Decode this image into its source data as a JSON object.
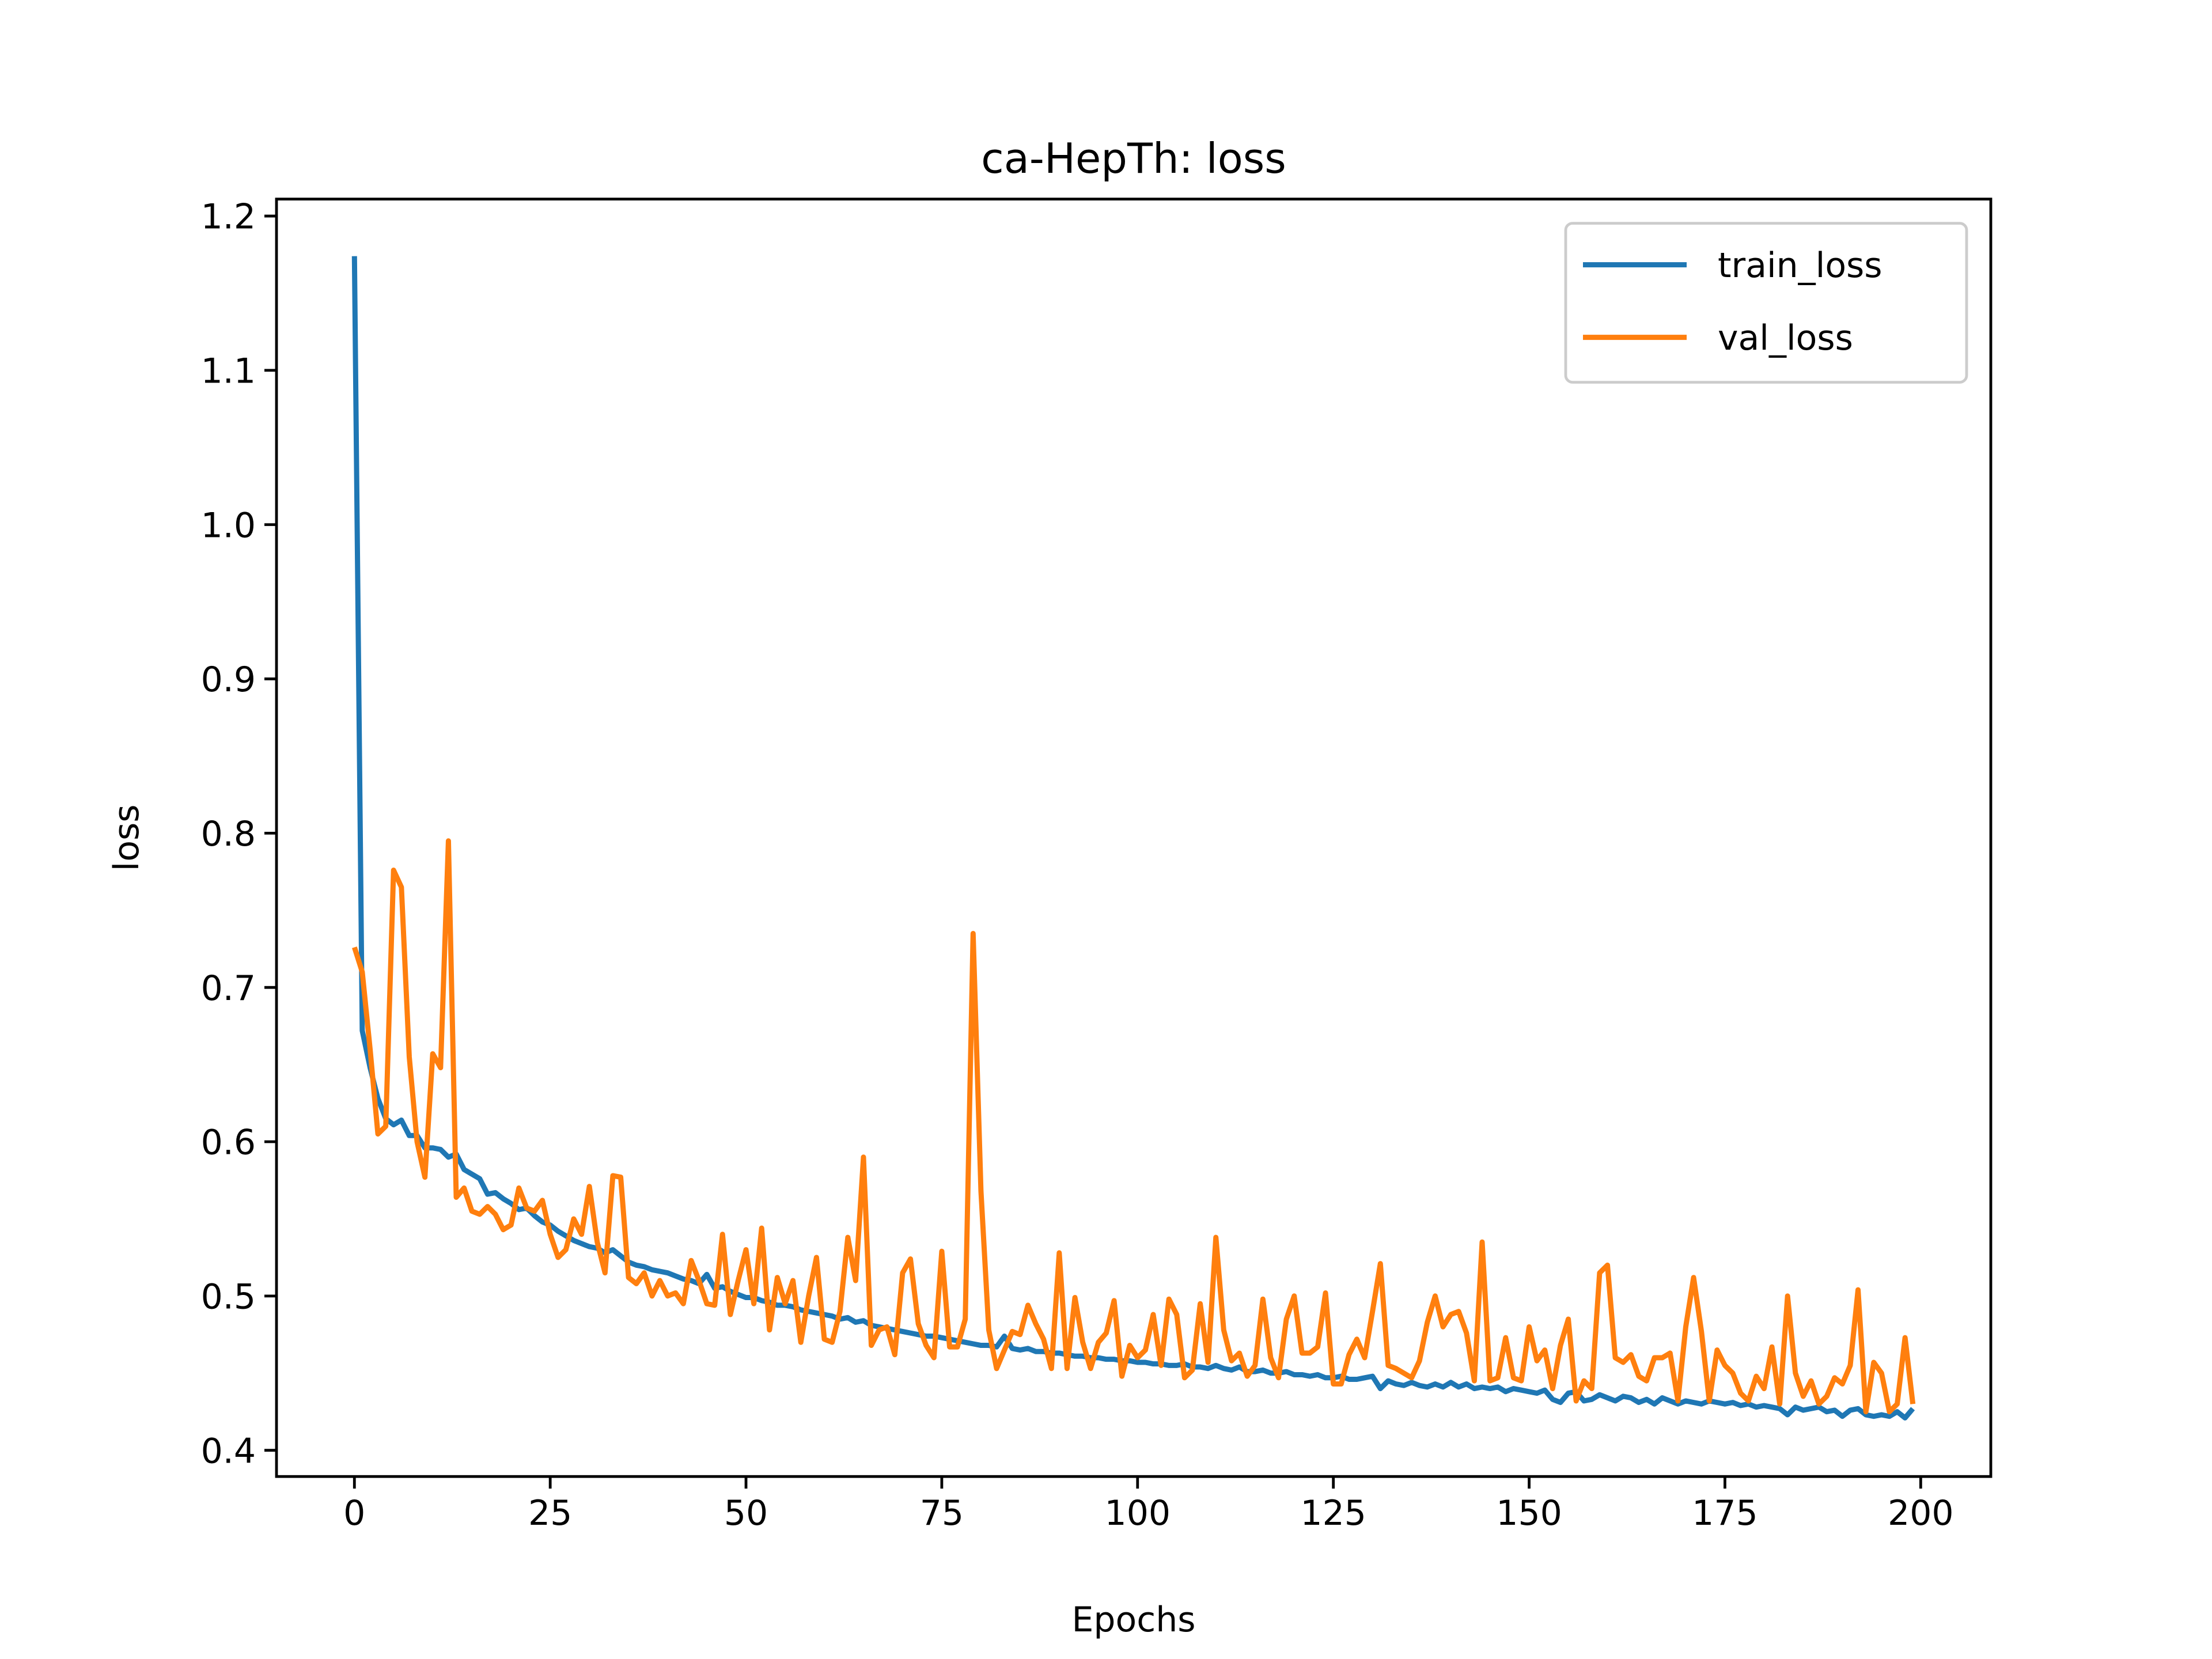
{
  "chart_data": {
    "type": "line",
    "title": "ca-HepTh: loss",
    "x_label": "Epochs",
    "y_label": "loss",
    "x": [
      0,
      1,
      2,
      3,
      4,
      5,
      6,
      7,
      8,
      9,
      10,
      11,
      12,
      13,
      14,
      15,
      16,
      17,
      18,
      19,
      20,
      21,
      22,
      23,
      24,
      25,
      26,
      27,
      28,
      29,
      30,
      31,
      32,
      33,
      34,
      35,
      36,
      37,
      38,
      39,
      40,
      41,
      42,
      43,
      44,
      45,
      46,
      47,
      48,
      49,
      50,
      51,
      52,
      53,
      54,
      55,
      56,
      57,
      58,
      59,
      60,
      61,
      62,
      63,
      64,
      65,
      66,
      67,
      68,
      69,
      70,
      71,
      72,
      73,
      74,
      75,
      76,
      77,
      78,
      79,
      80,
      81,
      82,
      83,
      84,
      85,
      86,
      87,
      88,
      89,
      90,
      91,
      92,
      93,
      94,
      95,
      96,
      97,
      98,
      99,
      100,
      101,
      102,
      103,
      104,
      105,
      106,
      107,
      108,
      109,
      110,
      111,
      112,
      113,
      114,
      115,
      116,
      117,
      118,
      119,
      120,
      121,
      122,
      123,
      124,
      125,
      126,
      127,
      128,
      129,
      130,
      131,
      132,
      133,
      134,
      135,
      136,
      137,
      138,
      139,
      140,
      141,
      142,
      143,
      144,
      145,
      146,
      147,
      148,
      149,
      150,
      151,
      152,
      153,
      154,
      155,
      156,
      157,
      158,
      159,
      160,
      161,
      162,
      163,
      164,
      165,
      166,
      167,
      168,
      169,
      170,
      171,
      172,
      173,
      174,
      175,
      176,
      177,
      178,
      179,
      180,
      181,
      182,
      183,
      184,
      185,
      186,
      187,
      188,
      189,
      190,
      191,
      192,
      193,
      194,
      195,
      196,
      197,
      198,
      199
    ],
    "series": [
      {
        "name": "train_loss",
        "color": "#1f77b4",
        "values": [
          1.174,
          0.672,
          0.648,
          0.628,
          0.615,
          0.611,
          0.614,
          0.604,
          0.604,
          0.596,
          0.596,
          0.595,
          0.59,
          0.592,
          0.582,
          0.579,
          0.576,
          0.566,
          0.567,
          0.563,
          0.56,
          0.556,
          0.557,
          0.552,
          0.548,
          0.546,
          0.542,
          0.539,
          0.536,
          0.534,
          0.532,
          0.531,
          0.528,
          0.53,
          0.526,
          0.522,
          0.52,
          0.519,
          0.517,
          0.516,
          0.515,
          0.513,
          0.511,
          0.51,
          0.508,
          0.514,
          0.505,
          0.506,
          0.503,
          0.501,
          0.499,
          0.499,
          0.497,
          0.496,
          0.494,
          0.494,
          0.493,
          0.491,
          0.49,
          0.489,
          0.488,
          0.487,
          0.485,
          0.486,
          0.483,
          0.484,
          0.481,
          0.48,
          0.479,
          0.478,
          0.477,
          0.476,
          0.475,
          0.474,
          0.474,
          0.473,
          0.472,
          0.471,
          0.47,
          0.469,
          0.468,
          0.468,
          0.467,
          0.474,
          0.466,
          0.465,
          0.466,
          0.464,
          0.464,
          0.463,
          0.463,
          0.462,
          0.461,
          0.461,
          0.46,
          0.46,
          0.459,
          0.459,
          0.458,
          0.458,
          0.457,
          0.457,
          0.456,
          0.456,
          0.455,
          0.455,
          0.456,
          0.454,
          0.454,
          0.453,
          0.455,
          0.453,
          0.452,
          0.454,
          0.451,
          0.451,
          0.452,
          0.45,
          0.45,
          0.451,
          0.449,
          0.449,
          0.448,
          0.449,
          0.447,
          0.447,
          0.448,
          0.446,
          0.446,
          0.447,
          0.448,
          0.44,
          0.445,
          0.443,
          0.442,
          0.444,
          0.442,
          0.441,
          0.443,
          0.441,
          0.444,
          0.441,
          0.443,
          0.44,
          0.441,
          0.44,
          0.441,
          0.438,
          0.44,
          0.439,
          0.438,
          0.437,
          0.439,
          0.433,
          0.431,
          0.437,
          0.438,
          0.432,
          0.433,
          0.436,
          0.434,
          0.432,
          0.435,
          0.434,
          0.431,
          0.433,
          0.43,
          0.434,
          0.432,
          0.43,
          0.432,
          0.431,
          0.43,
          0.432,
          0.431,
          0.43,
          0.431,
          0.429,
          0.43,
          0.428,
          0.429,
          0.428,
          0.427,
          0.423,
          0.428,
          0.426,
          0.427,
          0.428,
          0.425,
          0.426,
          0.422,
          0.426,
          0.427,
          0.423,
          0.422,
          0.423,
          0.422,
          0.425,
          0.421,
          0.427
        ]
      },
      {
        "name": "val_loss",
        "color": "#ff7f0e",
        "values": [
          0.726,
          0.71,
          0.66,
          0.605,
          0.61,
          0.776,
          0.765,
          0.655,
          0.6,
          0.577,
          0.657,
          0.648,
          0.795,
          0.564,
          0.57,
          0.555,
          0.553,
          0.558,
          0.553,
          0.543,
          0.546,
          0.57,
          0.557,
          0.555,
          0.562,
          0.54,
          0.525,
          0.53,
          0.55,
          0.54,
          0.571,
          0.535,
          0.515,
          0.578,
          0.577,
          0.512,
          0.508,
          0.515,
          0.5,
          0.51,
          0.5,
          0.502,
          0.495,
          0.523,
          0.51,
          0.495,
          0.494,
          0.54,
          0.488,
          0.51,
          0.53,
          0.495,
          0.544,
          0.478,
          0.512,
          0.495,
          0.51,
          0.47,
          0.5,
          0.525,
          0.472,
          0.47,
          0.49,
          0.538,
          0.51,
          0.59,
          0.468,
          0.478,
          0.48,
          0.462,
          0.515,
          0.524,
          0.482,
          0.468,
          0.46,
          0.529,
          0.467,
          0.467,
          0.485,
          0.735,
          0.568,
          0.478,
          0.453,
          0.465,
          0.477,
          0.475,
          0.494,
          0.482,
          0.472,
          0.453,
          0.528,
          0.453,
          0.499,
          0.47,
          0.453,
          0.47,
          0.476,
          0.497,
          0.448,
          0.468,
          0.46,
          0.465,
          0.488,
          0.455,
          0.498,
          0.488,
          0.447,
          0.452,
          0.495,
          0.457,
          0.538,
          0.478,
          0.458,
          0.463,
          0.448,
          0.455,
          0.498,
          0.46,
          0.447,
          0.485,
          0.5,
          0.463,
          0.463,
          0.467,
          0.502,
          0.443,
          0.443,
          0.462,
          0.472,
          0.46,
          0.49,
          0.521,
          0.455,
          0.453,
          0.45,
          0.447,
          0.458,
          0.483,
          0.5,
          0.48,
          0.488,
          0.49,
          0.476,
          0.445,
          0.535,
          0.445,
          0.447,
          0.473,
          0.447,
          0.445,
          0.48,
          0.458,
          0.465,
          0.44,
          0.468,
          0.485,
          0.432,
          0.445,
          0.44,
          0.515,
          0.52,
          0.46,
          0.457,
          0.462,
          0.448,
          0.445,
          0.46,
          0.46,
          0.463,
          0.432,
          0.48,
          0.512,
          0.477,
          0.432,
          0.465,
          0.455,
          0.45,
          0.437,
          0.432,
          0.448,
          0.44,
          0.467,
          0.43,
          0.5,
          0.45,
          0.435,
          0.445,
          0.43,
          0.435,
          0.447,
          0.443,
          0.455,
          0.504,
          0.425,
          0.457,
          0.45,
          0.425,
          0.43,
          0.473,
          0.43
        ]
      }
    ],
    "xlim": [
      -9.95,
      208.95
    ],
    "ylim": [
      0.383,
      1.211
    ],
    "xticks": [
      0,
      25,
      50,
      75,
      100,
      125,
      150,
      175,
      200
    ],
    "yticks": [
      0.4,
      0.5,
      0.6,
      0.7,
      0.8,
      0.9,
      {
        "value": 1,
        "label": "1.0"
      },
      1.1,
      1.2
    ],
    "legend": "upper right",
    "grid": false
  }
}
